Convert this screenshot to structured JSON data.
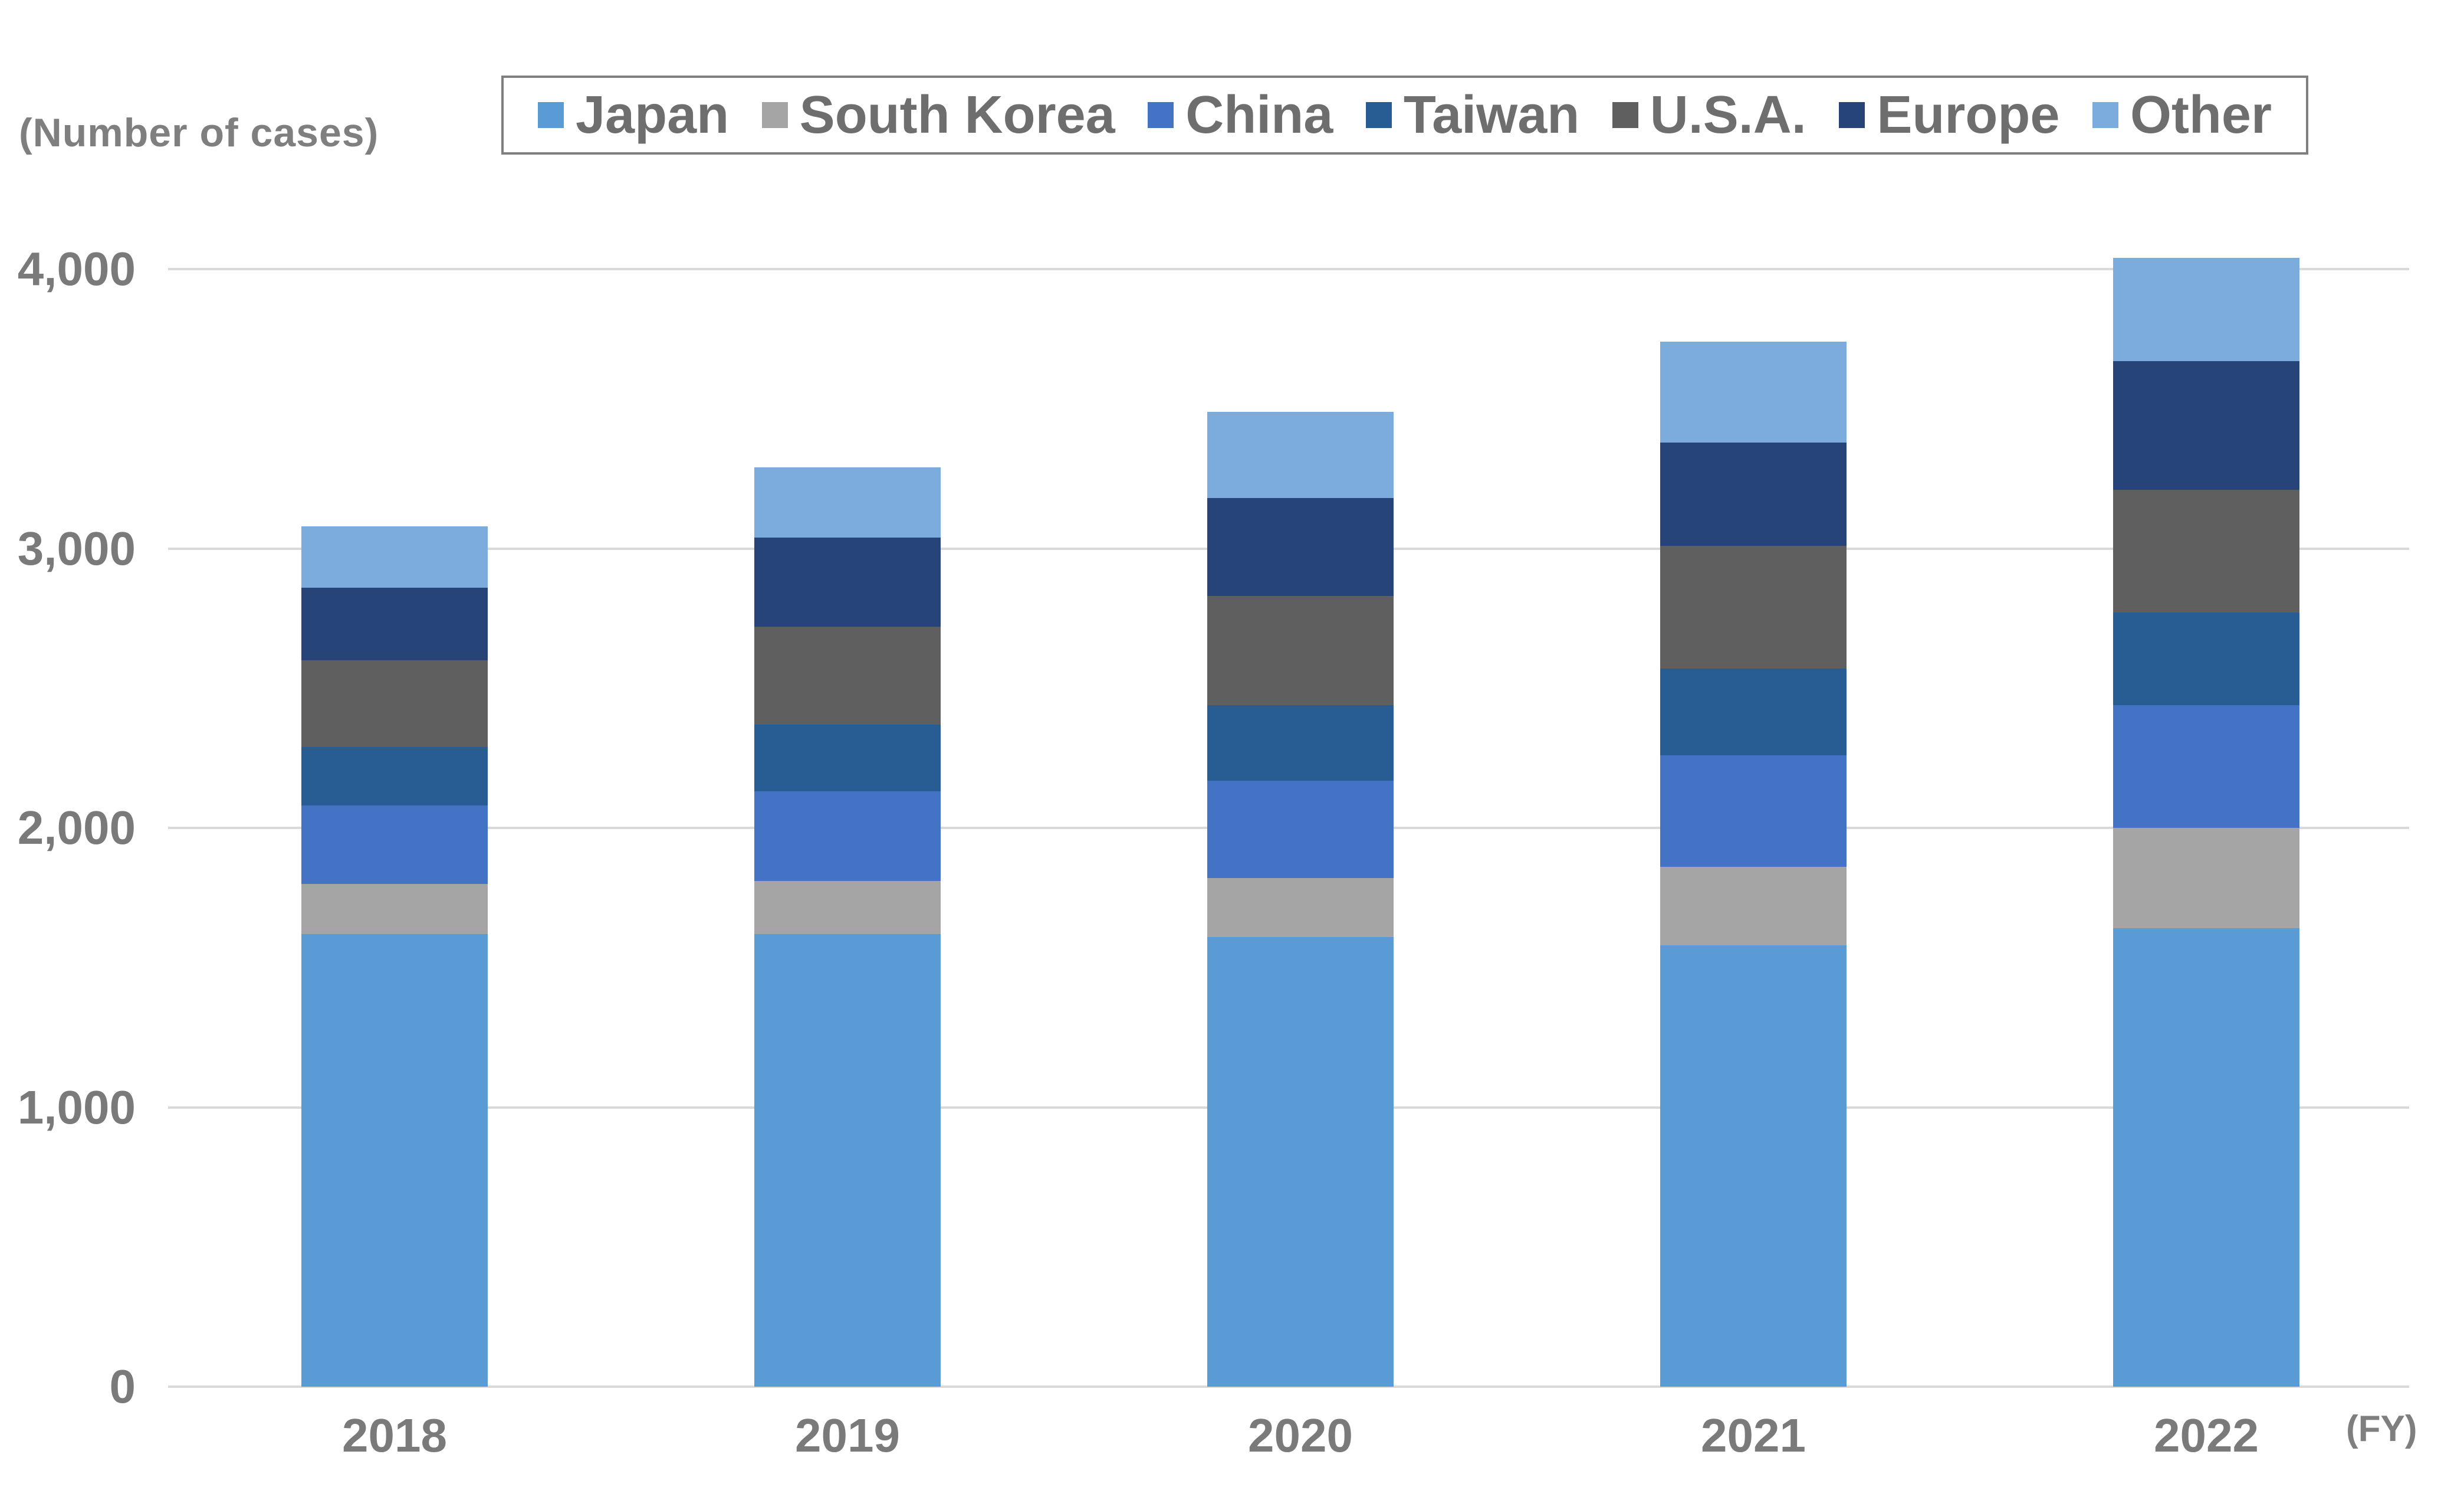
{
  "labels": {
    "number_of_cases": "(Number of cases)",
    "fy": "(FY)"
  },
  "colors": {
    "gridline": "#d9d9d9",
    "axis_line": "#d9d9d9",
    "tick_text": "#7a7a7a",
    "legend_border": "#7f7f7f",
    "legend_text": "#6e6e6e",
    "background": "#ffffff"
  },
  "chart_data": {
    "type": "bar",
    "stacked": true,
    "title": "",
    "y_axis_label": "(Number of cases)",
    "x_axis_label": "(FY)",
    "categories": [
      "2018",
      "2019",
      "2020",
      "2021",
      "2022"
    ],
    "series": [
      {
        "name": "Japan",
        "color": "#5B9BD5",
        "values": [
          1620,
          1620,
          1610,
          1580,
          1640
        ]
      },
      {
        "name": "South Korea",
        "color": "#A5A5A5",
        "values": [
          180,
          190,
          210,
          280,
          360
        ]
      },
      {
        "name": "China",
        "color": "#4472C4",
        "values": [
          280,
          320,
          350,
          400,
          440
        ]
      },
      {
        "name": "Taiwan",
        "color": "#275D92",
        "values": [
          210,
          240,
          270,
          310,
          330
        ]
      },
      {
        "name": "U.S.A.",
        "color": "#5F5F5F",
        "values": [
          310,
          350,
          390,
          440,
          440
        ]
      },
      {
        "name": "Europe",
        "color": "#264478",
        "values": [
          260,
          320,
          350,
          370,
          460
        ]
      },
      {
        "name": "Other",
        "color": "#7CACDD",
        "values": [
          220,
          250,
          310,
          360,
          370
        ]
      }
    ],
    "totals": [
      3080,
      3290,
      3490,
      3740,
      4040
    ],
    "ylim": [
      0,
      4000
    ],
    "y_ticks": [
      "0",
      "1,000",
      "2,000",
      "3,000",
      "4,000"
    ],
    "y_tick_values": [
      0,
      1000,
      2000,
      3000,
      4000
    ],
    "grid": true,
    "legend_position": "top"
  }
}
